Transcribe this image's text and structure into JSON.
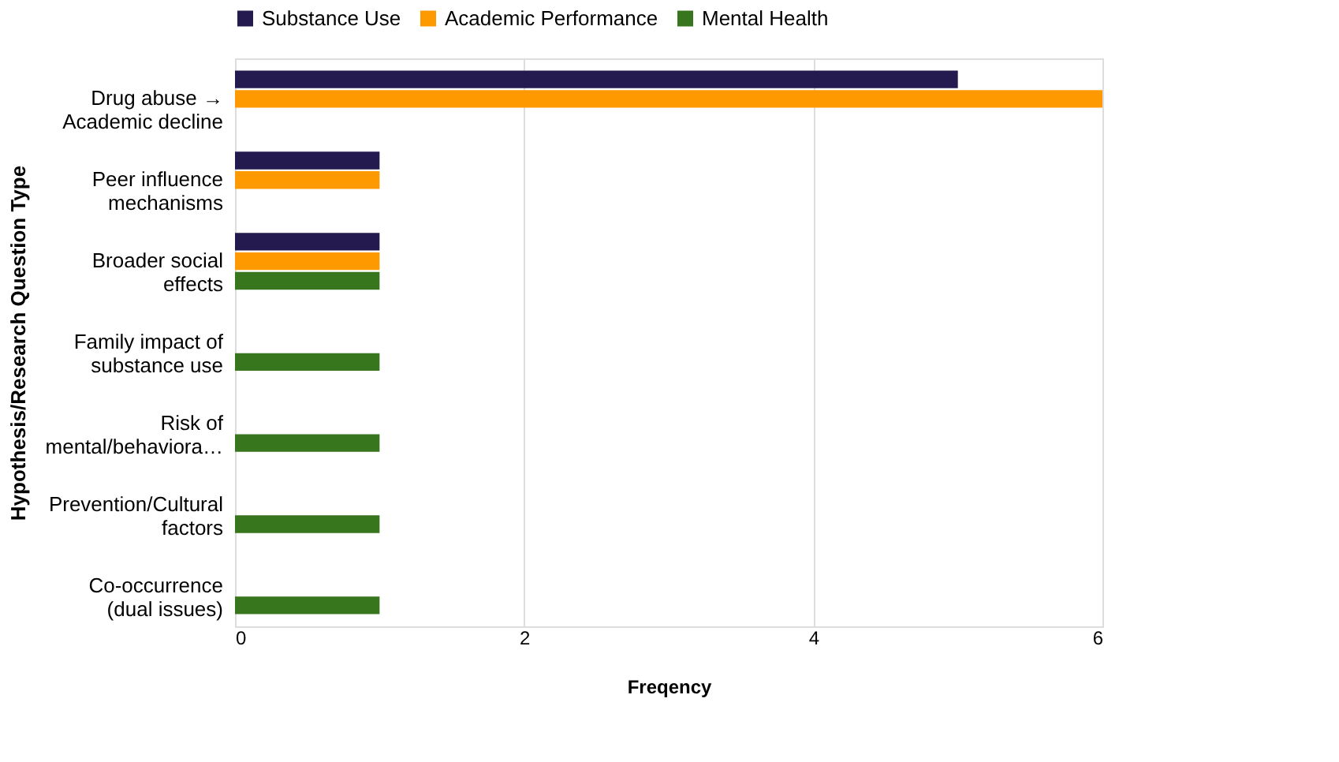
{
  "chart_data": {
    "type": "bar",
    "orientation": "horizontal",
    "categories": [
      "Drug abuse →\nAcademic decline",
      "Peer influence\nmechanisms",
      "Broader social\neffects",
      "Family impact of\nsubstance use",
      "Risk of\nmental/behaviora…",
      "Prevention/Cultural\nfactors",
      "Co-occurrence\n(dual issues)"
    ],
    "series": [
      {
        "name": "Substance Use",
        "color": "#241a50",
        "values": [
          5,
          1,
          1,
          null,
          null,
          null,
          null
        ]
      },
      {
        "name": "Academic Performance",
        "color": "#ff9900",
        "values": [
          6,
          1,
          1,
          null,
          null,
          null,
          null
        ]
      },
      {
        "name": "Mental Health",
        "color": "#38761d",
        "values": [
          null,
          null,
          1,
          1,
          1,
          1,
          1
        ]
      }
    ],
    "xlim": [
      0,
      6
    ],
    "xticks": [
      0,
      2,
      4,
      6
    ],
    "grid": "x",
    "legend": "top",
    "xlabel": "Freqency",
    "ylabel": "Hypothesis/Research Question Type"
  }
}
